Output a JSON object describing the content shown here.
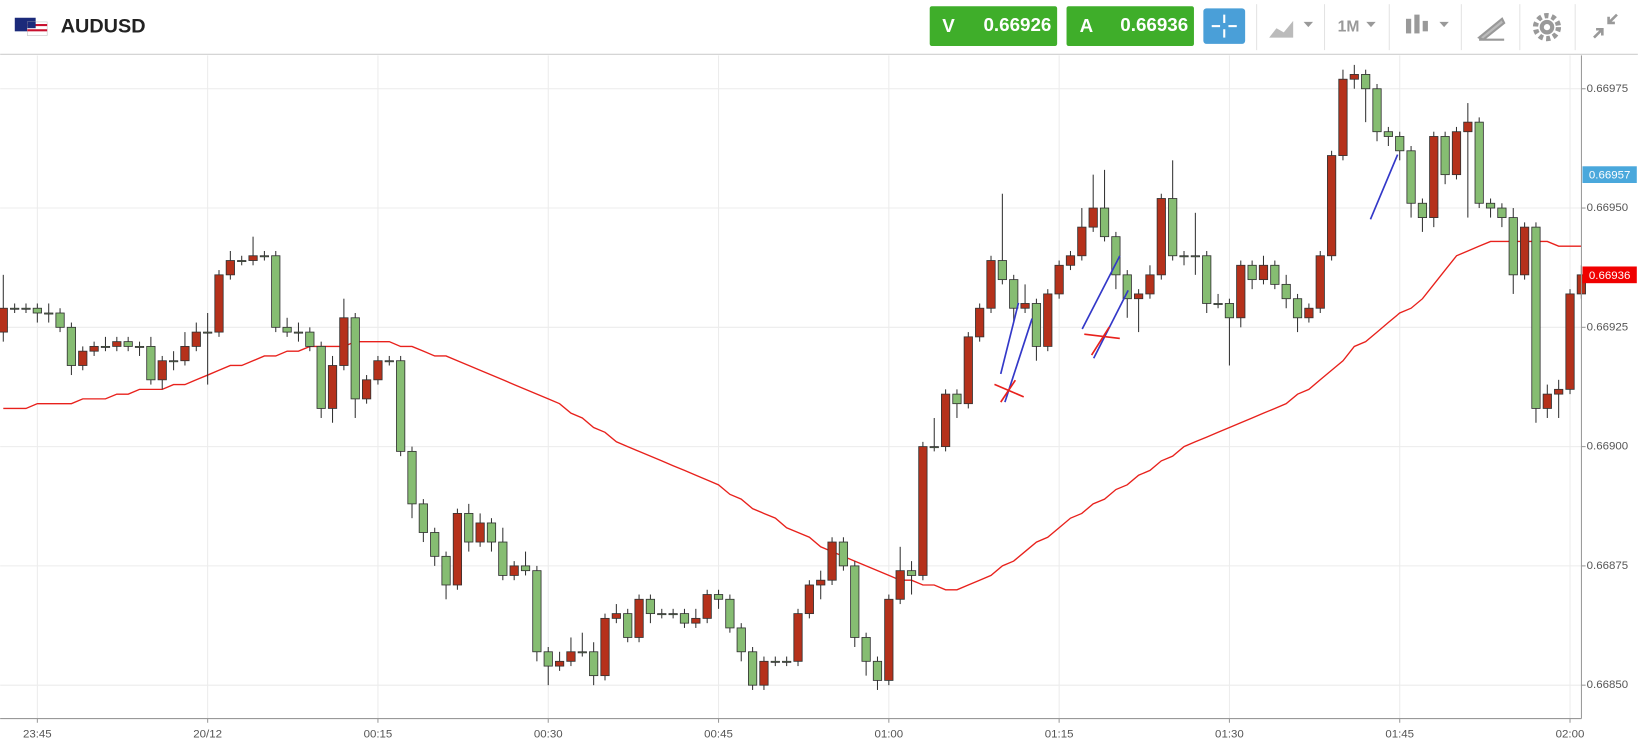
{
  "header": {
    "symbol": "AUDUSD",
    "bid_label": "V",
    "bid": 0.66926,
    "ask_label": "A",
    "ask": 0.66936,
    "timeframe": "1M"
  },
  "chart_data": {
    "type": "candlestick",
    "categories": [
      null,
      null,
      null,
      "23:45",
      null,
      null,
      null,
      null,
      null,
      null,
      null,
      null,
      null,
      null,
      null,
      null,
      null,
      null,
      "20/12",
      null,
      null,
      null,
      null,
      null,
      null,
      null,
      null,
      null,
      null,
      null,
      null,
      null,
      null,
      "00:15",
      null,
      null,
      null,
      null,
      null,
      null,
      null,
      null,
      null,
      null,
      null,
      null,
      null,
      null,
      "00:30",
      null,
      null,
      null,
      null,
      null,
      null,
      null,
      null,
      null,
      null,
      null,
      null,
      null,
      null,
      "00:45",
      null,
      null,
      null,
      null,
      null,
      null,
      null,
      null,
      null,
      null,
      null,
      null,
      null,
      null,
      "01:00",
      null,
      null,
      null,
      null,
      null,
      null,
      null,
      null,
      null,
      null,
      null,
      null,
      null,
      null,
      "01:15",
      null,
      null,
      null,
      null,
      null,
      null,
      null,
      null,
      null,
      null,
      null,
      null,
      null,
      null,
      "01:30",
      null,
      null,
      null,
      null,
      null,
      null,
      null,
      null,
      null,
      null,
      null,
      null,
      null,
      null,
      "01:45",
      null,
      null,
      null,
      null,
      null,
      null,
      null,
      null,
      null,
      null,
      null,
      null,
      null,
      null,
      "02:00",
      null
    ],
    "open": [
      0.66924,
      0.66929,
      0.66929,
      0.66929,
      0.66928,
      0.66928,
      0.66925,
      0.66917,
      0.6692,
      0.66921,
      0.66921,
      0.66922,
      0.66921,
      0.66921,
      0.66914,
      0.66918,
      0.66918,
      0.66921,
      0.66924,
      0.66924,
      0.66936,
      0.66939,
      0.66939,
      0.6694,
      0.6694,
      0.66925,
      0.66924,
      0.66924,
      0.66921,
      0.66908,
      0.66917,
      0.66927,
      0.6691,
      0.66914,
      0.66918,
      0.66918,
      0.66899,
      0.66888,
      0.66882,
      0.66877,
      0.66871,
      0.66886,
      0.6688,
      0.66884,
      0.6688,
      0.66873,
      0.66875,
      0.66874,
      0.66857,
      0.66854,
      0.66855,
      0.66857,
      0.66857,
      0.66852,
      0.66864,
      0.66865,
      0.6686,
      0.66868,
      0.66865,
      0.66865,
      0.66865,
      0.66863,
      0.66864,
      0.66869,
      0.66868,
      0.66862,
      0.66857,
      0.6685,
      0.66855,
      0.66855,
      0.66855,
      0.66865,
      0.66871,
      0.66872,
      0.6688,
      0.66875,
      0.6686,
      0.66855,
      0.66851,
      0.66868,
      0.66874,
      0.66873,
      0.669,
      0.669,
      0.66911,
      0.66909,
      0.66923,
      0.66929,
      0.66939,
      0.66935,
      0.66929,
      0.6693,
      0.66921,
      0.66932,
      0.66938,
      0.6694,
      0.66946,
      0.6695,
      0.66944,
      0.66936,
      0.66931,
      0.66932,
      0.66936,
      0.66952,
      0.6694,
      0.6694,
      0.6694,
      0.6693,
      0.6693,
      0.66927,
      0.66938,
      0.66935,
      0.66938,
      0.66934,
      0.66931,
      0.66927,
      0.66929,
      0.6694,
      0.66961,
      0.66977,
      0.66978,
      0.66975,
      0.66966,
      0.66965,
      0.66962,
      0.66951,
      0.66948,
      0.66965,
      0.66957,
      0.66966,
      0.66968,
      0.66951,
      0.6695,
      0.66948,
      0.66936,
      0.66946,
      0.66908,
      0.66911,
      0.66912,
      0.66932
    ],
    "high": [
      0.66936,
      0.6693,
      0.6693,
      0.6693,
      0.6693,
      0.66929,
      0.66926,
      0.66921,
      0.66922,
      0.66923,
      0.66923,
      0.66923,
      0.66922,
      0.66923,
      0.66919,
      0.6692,
      0.66924,
      0.66926,
      0.66928,
      0.66937,
      0.66941,
      0.6694,
      0.66944,
      0.66941,
      0.66941,
      0.66927,
      0.66926,
      0.66925,
      0.66922,
      0.66919,
      0.66931,
      0.66928,
      0.66915,
      0.66919,
      0.66919,
      0.66919,
      0.669,
      0.66889,
      0.66883,
      0.66878,
      0.66887,
      0.66888,
      0.66886,
      0.66885,
      0.66883,
      0.66876,
      0.66878,
      0.66875,
      0.66858,
      0.66857,
      0.6686,
      0.66861,
      0.66859,
      0.66865,
      0.66867,
      0.66866,
      0.66869,
      0.66869,
      0.66866,
      0.66866,
      0.66866,
      0.66866,
      0.6687,
      0.6687,
      0.66869,
      0.66863,
      0.66858,
      0.66856,
      0.66856,
      0.66856,
      0.66866,
      0.66872,
      0.66874,
      0.66881,
      0.66881,
      0.66876,
      0.66861,
      0.66856,
      0.66869,
      0.66879,
      0.66876,
      0.66901,
      0.66906,
      0.66912,
      0.66912,
      0.66924,
      0.6693,
      0.6694,
      0.66953,
      0.66936,
      0.66934,
      0.66931,
      0.66933,
      0.66939,
      0.66941,
      0.6695,
      0.66957,
      0.66958,
      0.66945,
      0.66937,
      0.66933,
      0.66938,
      0.66953,
      0.6696,
      0.66941,
      0.66949,
      0.66941,
      0.66932,
      0.66931,
      0.66939,
      0.66939,
      0.6694,
      0.66939,
      0.66936,
      0.66932,
      0.6693,
      0.66941,
      0.66962,
      0.66979,
      0.6698,
      0.66979,
      0.66976,
      0.66967,
      0.66966,
      0.66963,
      0.66952,
      0.66966,
      0.66966,
      0.66967,
      0.66972,
      0.66969,
      0.66952,
      0.66951,
      0.6695,
      0.66947,
      0.66947,
      0.66913,
      0.66914,
      0.66933,
      0.66938
    ],
    "low": [
      0.66922,
      0.66928,
      0.66928,
      0.66926,
      0.66926,
      0.66924,
      0.66915,
      0.66916,
      0.66919,
      0.6692,
      0.6692,
      0.6692,
      0.66919,
      0.66913,
      0.66912,
      0.66916,
      0.66917,
      0.6692,
      0.66913,
      0.66923,
      0.66935,
      0.66938,
      0.66938,
      0.66939,
      0.66924,
      0.66923,
      0.66922,
      0.6692,
      0.66906,
      0.66905,
      0.66916,
      0.66906,
      0.66909,
      0.66913,
      0.66917,
      0.66898,
      0.66885,
      0.6688,
      0.66875,
      0.66868,
      0.6687,
      0.66878,
      0.66879,
      0.66878,
      0.66872,
      0.66872,
      0.66873,
      0.66855,
      0.6685,
      0.66853,
      0.66854,
      0.66856,
      0.6685,
      0.66851,
      0.66863,
      0.66859,
      0.66859,
      0.66863,
      0.66864,
      0.66864,
      0.66862,
      0.66862,
      0.66863,
      0.66866,
      0.66861,
      0.66855,
      0.66849,
      0.66849,
      0.66854,
      0.66854,
      0.66854,
      0.66864,
      0.66868,
      0.66871,
      0.66874,
      0.66858,
      0.66852,
      0.66849,
      0.6685,
      0.66867,
      0.66869,
      0.66872,
      0.66899,
      0.66899,
      0.66906,
      0.66908,
      0.66922,
      0.66928,
      0.66934,
      0.66926,
      0.66928,
      0.66918,
      0.6692,
      0.66931,
      0.66937,
      0.66939,
      0.66945,
      0.66943,
      0.66933,
      0.66927,
      0.66924,
      0.66931,
      0.66935,
      0.66939,
      0.66938,
      0.66936,
      0.66928,
      0.66929,
      0.66917,
      0.66925,
      0.66933,
      0.66934,
      0.66933,
      0.66929,
      0.66924,
      0.66926,
      0.66928,
      0.66939,
      0.6696,
      0.66975,
      0.66968,
      0.66964,
      0.66963,
      0.6696,
      0.66948,
      0.66945,
      0.66946,
      0.66955,
      0.66956,
      0.66948,
      0.6695,
      0.66948,
      0.66946,
      0.66932,
      0.66935,
      0.66905,
      0.66906,
      0.66906,
      0.66911,
      0.66931
    ],
    "close": [
      0.66929,
      0.66929,
      0.66929,
      0.66928,
      0.66928,
      0.66925,
      0.66917,
      0.6692,
      0.66921,
      0.66921,
      0.66922,
      0.66921,
      0.66921,
      0.66914,
      0.66918,
      0.66918,
      0.66921,
      0.66924,
      0.66924,
      0.66936,
      0.66939,
      0.66939,
      0.6694,
      0.6694,
      0.66925,
      0.66924,
      0.66924,
      0.66921,
      0.66908,
      0.66917,
      0.66927,
      0.6691,
      0.66914,
      0.66918,
      0.66918,
      0.66899,
      0.66888,
      0.66882,
      0.66877,
      0.66871,
      0.66886,
      0.6688,
      0.66884,
      0.6688,
      0.66873,
      0.66875,
      0.66874,
      0.66857,
      0.66854,
      0.66855,
      0.66857,
      0.66857,
      0.66852,
      0.66864,
      0.66865,
      0.6686,
      0.66868,
      0.66865,
      0.66865,
      0.66865,
      0.66863,
      0.66864,
      0.66869,
      0.66868,
      0.66862,
      0.66857,
      0.6685,
      0.66855,
      0.66855,
      0.66855,
      0.66865,
      0.66871,
      0.66872,
      0.6688,
      0.66875,
      0.6686,
      0.66855,
      0.66851,
      0.66868,
      0.66874,
      0.66873,
      0.669,
      0.669,
      0.66911,
      0.66909,
      0.66923,
      0.66929,
      0.66939,
      0.66935,
      0.66929,
      0.6693,
      0.66921,
      0.66932,
      0.66938,
      0.6694,
      0.66946,
      0.6695,
      0.66944,
      0.66936,
      0.66931,
      0.66932,
      0.66936,
      0.66952,
      0.6694,
      0.6694,
      0.6694,
      0.6693,
      0.6693,
      0.66927,
      0.66938,
      0.66935,
      0.66938,
      0.66934,
      0.66931,
      0.66927,
      0.66929,
      0.6694,
      0.66961,
      0.66977,
      0.66978,
      0.66975,
      0.66966,
      0.66965,
      0.66962,
      0.66951,
      0.66948,
      0.66965,
      0.66957,
      0.66966,
      0.66968,
      0.66951,
      0.6695,
      0.66948,
      0.66936,
      0.66946,
      0.66908,
      0.66911,
      0.66912,
      0.66932,
      0.66936
    ],
    "colors": {
      "up": "#b5311b",
      "down": "#86bd72"
    },
    "ma": {
      "color": "#e8211c",
      "values": [
        0.66908,
        0.66908,
        0.66908,
        0.66909,
        0.66909,
        0.66909,
        0.66909,
        0.6691,
        0.6691,
        0.6691,
        0.66911,
        0.66911,
        0.66912,
        0.66912,
        0.66912,
        0.66913,
        0.66913,
        0.66914,
        0.66915,
        0.66916,
        0.66917,
        0.66917,
        0.66918,
        0.66919,
        0.66919,
        0.6692,
        0.6692,
        0.66921,
        0.66921,
        0.66921,
        0.66921,
        0.66922,
        0.66922,
        0.66922,
        0.66922,
        0.66921,
        0.66921,
        0.6692,
        0.66919,
        0.66919,
        0.66918,
        0.66917,
        0.66916,
        0.66915,
        0.66914,
        0.66913,
        0.66912,
        0.66911,
        0.6691,
        0.66909,
        0.66907,
        0.66906,
        0.66904,
        0.66903,
        0.66901,
        0.669,
        0.66899,
        0.66898,
        0.66897,
        0.66896,
        0.66895,
        0.66894,
        0.66893,
        0.66892,
        0.6689,
        0.66889,
        0.66887,
        0.66886,
        0.66885,
        0.66883,
        0.66882,
        0.66881,
        0.66879,
        0.66878,
        0.66877,
        0.66876,
        0.66875,
        0.66874,
        0.66873,
        0.66872,
        0.66872,
        0.66871,
        0.66871,
        0.6687,
        0.6687,
        0.66871,
        0.66872,
        0.66873,
        0.66875,
        0.66876,
        0.66878,
        0.6688,
        0.66881,
        0.66883,
        0.66885,
        0.66886,
        0.66888,
        0.66889,
        0.66891,
        0.66892,
        0.66894,
        0.66895,
        0.66897,
        0.66898,
        0.669,
        0.66901,
        0.66902,
        0.66903,
        0.66904,
        0.66905,
        0.66906,
        0.66907,
        0.66908,
        0.66909,
        0.66911,
        0.66912,
        0.66914,
        0.66916,
        0.66918,
        0.66921,
        0.66922,
        0.66924,
        0.66926,
        0.66928,
        0.66929,
        0.66931,
        0.66934,
        0.66937,
        0.6694,
        0.66941,
        0.66942,
        0.66943,
        0.66943,
        0.66943,
        0.66943,
        0.66943,
        0.66943,
        0.66942,
        0.66942,
        0.66942
      ]
    },
    "ylim": [
      0.66843,
      0.66982
    ],
    "yticks": [
      {
        "value": 0.6685,
        "label": "0.66850"
      },
      {
        "value": 0.66875,
        "label": "0.66875"
      },
      {
        "value": 0.669,
        "label": "0.66900"
      },
      {
        "value": 0.66925,
        "label": "0.66925"
      },
      {
        "value": 0.6695,
        "label": "0.66950"
      },
      {
        "value": 0.66975,
        "label": "0.66975"
      }
    ],
    "grid": true,
    "price_labels": [
      {
        "value": 0.66957,
        "color": "#4aa8dc"
      },
      {
        "value": 0.66936,
        "color": "#f00000"
      }
    ]
  }
}
